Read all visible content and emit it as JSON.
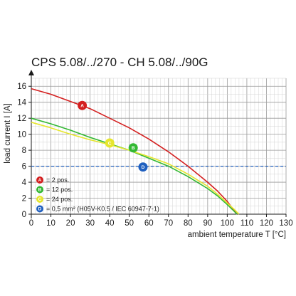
{
  "chart_data": {
    "type": "line",
    "title": "CPS 5.08/../270 - CH 5.08/../90G",
    "xlabel": "ambient temperature T [°C]",
    "ylabel": "load current I [A]",
    "xlim": [
      0,
      130
    ],
    "ylim": [
      0,
      17
    ],
    "xticks": [
      0,
      10,
      20,
      30,
      40,
      50,
      60,
      70,
      80,
      90,
      100,
      110,
      120,
      130
    ],
    "yticks": [
      0,
      2,
      4,
      6,
      8,
      10,
      12,
      14,
      16
    ],
    "grid": true,
    "series": [
      {
        "name": "A",
        "color": "#d42020",
        "x": [
          0,
          10,
          20,
          30,
          40,
          50,
          60,
          70,
          80,
          90,
          95,
          100,
          103,
          105
        ],
        "y": [
          15.7,
          15.0,
          14.1,
          13.2,
          12.0,
          10.8,
          9.4,
          7.8,
          6.0,
          4.0,
          2.9,
          1.6,
          0.6,
          0
        ]
      },
      {
        "name": "B",
        "color": "#33b833",
        "x": [
          0,
          10,
          20,
          30,
          40,
          50,
          60,
          70,
          80,
          90,
          95,
          100,
          103,
          105
        ],
        "y": [
          12.0,
          11.3,
          10.5,
          9.6,
          8.8,
          8.0,
          7.0,
          6.0,
          4.7,
          3.2,
          2.3,
          1.2,
          0.5,
          0
        ]
      },
      {
        "name": "C",
        "color": "#e6e62e",
        "x": [
          0,
          10,
          20,
          30,
          40,
          50,
          60,
          70,
          80,
          90,
          95,
          100,
          104,
          106
        ],
        "y": [
          11.5,
          10.8,
          10.0,
          9.3,
          8.7,
          8.0,
          7.2,
          6.3,
          5.0,
          3.5,
          2.5,
          1.4,
          0.5,
          0
        ]
      }
    ],
    "reference_line": {
      "y": 6,
      "color": "#1f5fbf",
      "style": "dashed",
      "label": "D"
    },
    "markers": [
      {
        "label": "A",
        "x": 26,
        "y": 13.6,
        "color": "#d42020"
      },
      {
        "label": "B",
        "x": 52,
        "y": 8.3,
        "color": "#33b833"
      },
      {
        "label": "C",
        "x": 40,
        "y": 8.9,
        "color": "#e6e62e"
      },
      {
        "label": "D",
        "x": 57,
        "y": 5.9,
        "color": "#1f5fbf"
      }
    ],
    "legend": {
      "placement": "bottom-left",
      "entries": [
        {
          "label": "A",
          "color": "#d42020",
          "text": "= 2 pos."
        },
        {
          "label": "B",
          "color": "#33b833",
          "text": "= 12 pos."
        },
        {
          "label": "C",
          "color": "#e6e62e",
          "text": "= 24 pos."
        },
        {
          "label": "D",
          "color": "#1f5fbf",
          "text": "= 0,5 mm² (H05V-K0.5 / IEC 60947-7-1)"
        }
      ]
    }
  }
}
